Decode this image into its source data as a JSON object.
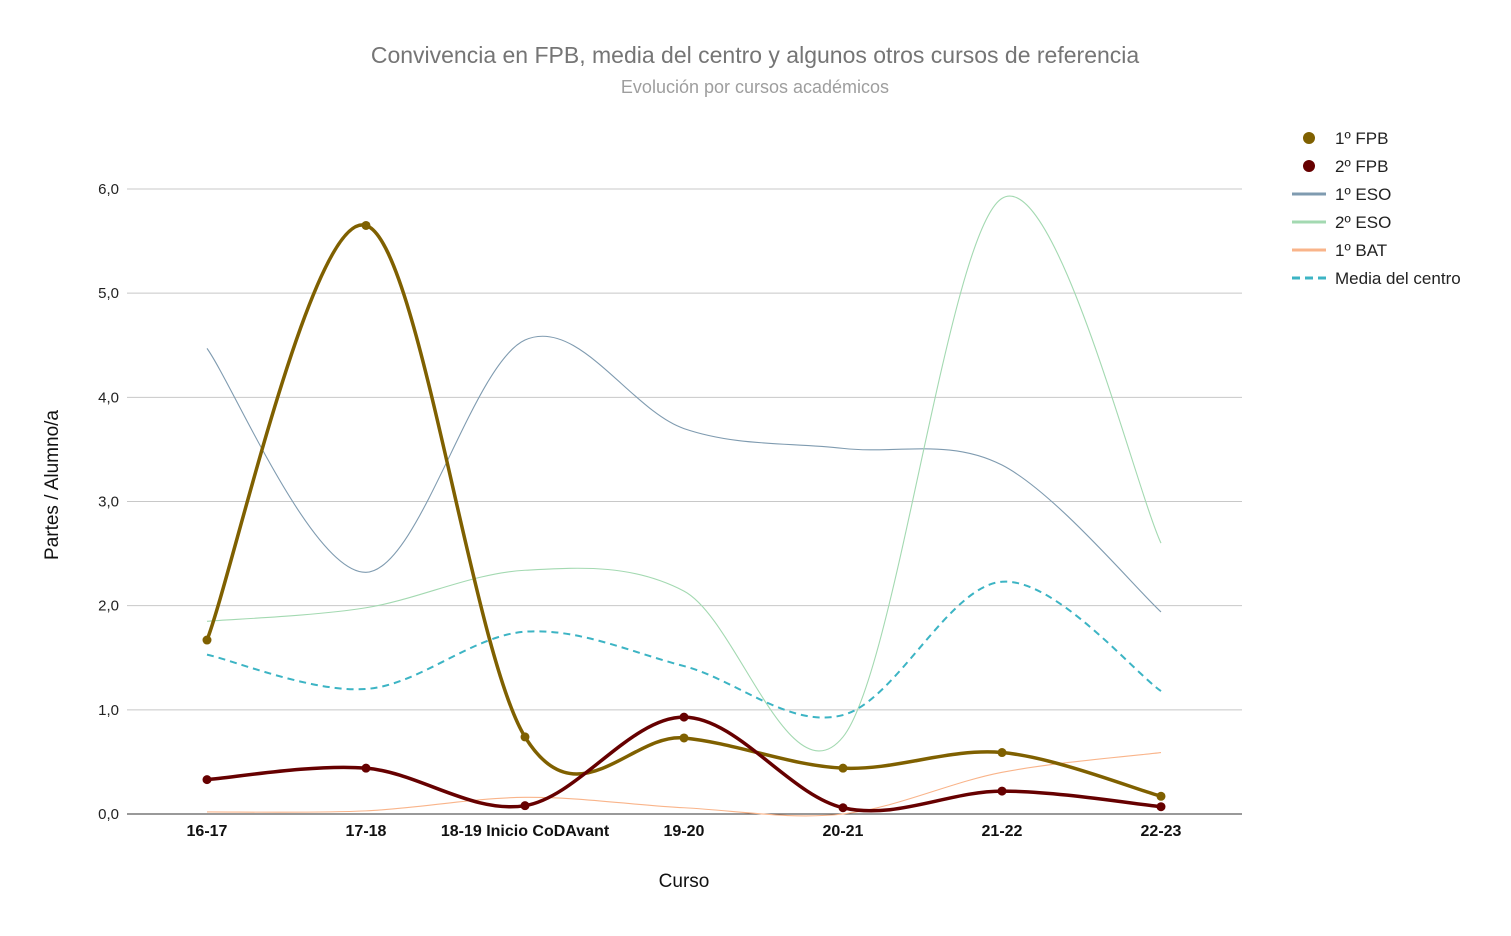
{
  "chart_data": {
    "type": "line",
    "title": "Convivencia en FPB, media del centro y algunos otros cursos de referencia",
    "subtitle": "Evolución por cursos académicos",
    "xlabel": "Curso",
    "ylabel": "Partes / Alumno/a",
    "ylim": [
      0,
      6
    ],
    "yticks": [
      "0,0",
      "1,0",
      "2,0",
      "3,0",
      "4,0",
      "5,0",
      "6,0"
    ],
    "categories": [
      "16-17",
      "17-18",
      "18-19 Inicio CoDAvant",
      "19-20",
      "20-21",
      "21-22",
      "22-23"
    ],
    "grid": true,
    "legend_position": "right",
    "series": [
      {
        "name": "1º FPB",
        "color": "#7f6000",
        "style": "thick-markers",
        "values": [
          1.67,
          5.65,
          0.74,
          0.73,
          0.44,
          0.59,
          0.17
        ]
      },
      {
        "name": "2º FPB",
        "color": "#660000",
        "style": "thick-markers",
        "values": [
          0.33,
          0.44,
          0.08,
          0.93,
          0.06,
          0.22,
          0.07
        ]
      },
      {
        "name": "1º ESO",
        "color": "#7f9bb0",
        "style": "thin",
        "values": [
          4.47,
          2.32,
          4.55,
          3.7,
          3.51,
          3.35,
          1.94
        ]
      },
      {
        "name": "2º ESO",
        "color": "#a3d9b1",
        "style": "thin",
        "values": [
          1.85,
          1.98,
          2.34,
          2.14,
          0.74,
          5.91,
          2.6
        ]
      },
      {
        "name": "1º BAT",
        "color": "#f9b48a",
        "style": "thin",
        "values": [
          0.02,
          0.03,
          0.16,
          0.06,
          0.0,
          0.4,
          0.59
        ]
      },
      {
        "name": "Media del centro",
        "color": "#3cb4c4",
        "style": "dashed",
        "values": [
          1.53,
          1.2,
          1.75,
          1.42,
          0.95,
          2.23,
          1.18
        ]
      }
    ]
  }
}
